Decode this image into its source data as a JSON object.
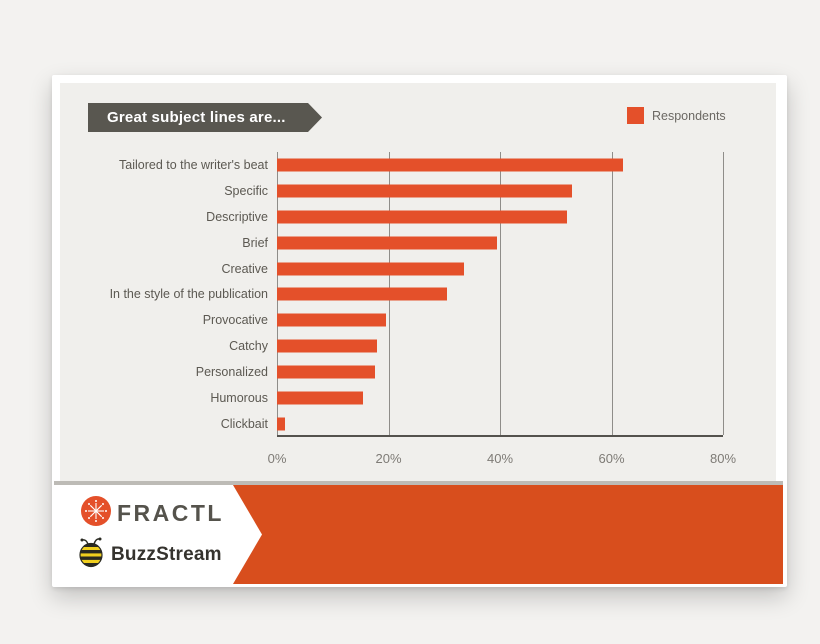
{
  "header": {
    "title": "Great subject lines are...",
    "legend_label": "Respondents"
  },
  "chart_data": {
    "type": "bar",
    "orientation": "horizontal",
    "title": "Great subject lines are...",
    "legend": {
      "entries": [
        "Respondents"
      ],
      "position": "top-right",
      "swatch_color": "#e4502a"
    },
    "categories": [
      "Tailored to the writer's beat",
      "Specific",
      "Descriptive",
      "Brief",
      "Creative",
      "In the style of the publication",
      "Provocative",
      "Catchy",
      "Personalized",
      "Humorous",
      "Clickbait"
    ],
    "series": [
      {
        "name": "Respondents",
        "values": [
          62,
          53,
          52,
          39.5,
          33.5,
          30.5,
          19.5,
          18,
          17.5,
          15.5,
          1.5
        ]
      }
    ],
    "xlabel": "",
    "ylabel": "",
    "x_ticks": [
      "0%",
      "20%",
      "40%",
      "60%",
      "80%"
    ],
    "xlim": [
      0,
      80
    ],
    "grid": true,
    "bar_color": "#e4502a",
    "unit": "%"
  },
  "footer": {
    "fractl_label": "FRACTL",
    "buzzstream_label": "BuzzStream",
    "icons": [
      "fractl-burst-icon",
      "buzzstream-bee-icon"
    ],
    "band_color": "#d84e1d"
  },
  "colors": {
    "page_background": "#f3f2f0",
    "card_background": "#ffffff",
    "panel_background": "#f0efec",
    "banner_background": "#595750",
    "bar_color": "#e4502a",
    "band_color": "#d84e1d",
    "gridline": "#8f8d89",
    "axis_line": "#54524d",
    "category_text": "#5c5952",
    "tick_text": "#7e7b76"
  }
}
